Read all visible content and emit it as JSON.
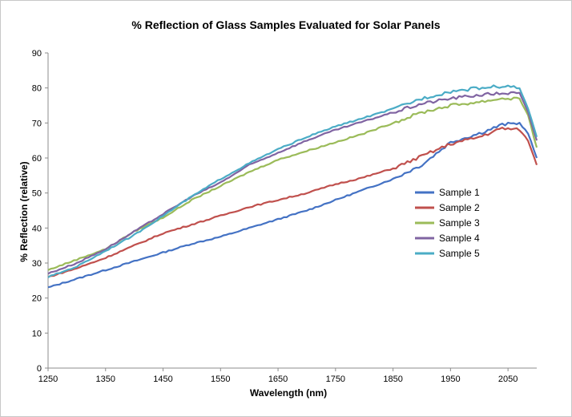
{
  "chart_data": {
    "type": "line",
    "title": "% Reflection of Glass Samples Evaluated for Solar Panels",
    "xlabel": "Wavelength (nm)",
    "ylabel": "% Reflection (relative)",
    "xlim": [
      1250,
      2100
    ],
    "ylim": [
      0,
      90
    ],
    "x_ticks": [
      1250,
      1350,
      1450,
      1550,
      1650,
      1750,
      1850,
      1950,
      2050
    ],
    "y_ticks": [
      0,
      10,
      20,
      30,
      40,
      50,
      60,
      70,
      80,
      90
    ],
    "grid": false,
    "legend_position": "right",
    "x": [
      1250,
      1300,
      1350,
      1400,
      1450,
      1500,
      1550,
      1600,
      1650,
      1700,
      1750,
      1800,
      1850,
      1900,
      1950,
      2000,
      2040,
      2070,
      2085,
      2100
    ],
    "series": [
      {
        "name": "Sample 1",
        "color": "#4472c4",
        "values": [
          23,
          25.5,
          28,
          30.5,
          33,
          35.5,
          37.5,
          40,
          42.5,
          45,
          48,
          51,
          54,
          58,
          64.5,
          67,
          69.5,
          70,
          67,
          60
        ]
      },
      {
        "name": "Sample 2",
        "color": "#c0504d",
        "values": [
          26,
          28.5,
          31.5,
          35,
          38.5,
          41,
          43.5,
          46,
          48,
          50,
          52.5,
          54.5,
          57,
          60.5,
          64,
          66,
          68.5,
          68,
          65,
          58
        ]
      },
      {
        "name": "Sample 3",
        "color": "#9bbb59",
        "values": [
          28,
          31,
          34,
          39,
          43,
          48,
          52,
          56,
          59.5,
          62,
          64.5,
          67,
          70,
          73,
          75,
          76,
          77,
          77,
          72,
          63
        ]
      },
      {
        "name": "Sample 4",
        "color": "#8064a2",
        "values": [
          27,
          30,
          34,
          39,
          44,
          49,
          53,
          58,
          61.5,
          65,
          68,
          70.5,
          73,
          75.5,
          77,
          78,
          78.5,
          78.5,
          73,
          65
        ]
      },
      {
        "name": "Sample 5",
        "color": "#4bacc6",
        "values": [
          26,
          29,
          33.5,
          38,
          43.5,
          49,
          54,
          58.5,
          62.5,
          66,
          69,
          71.5,
          74,
          77,
          79,
          80,
          80.5,
          80,
          74,
          66
        ]
      }
    ]
  }
}
